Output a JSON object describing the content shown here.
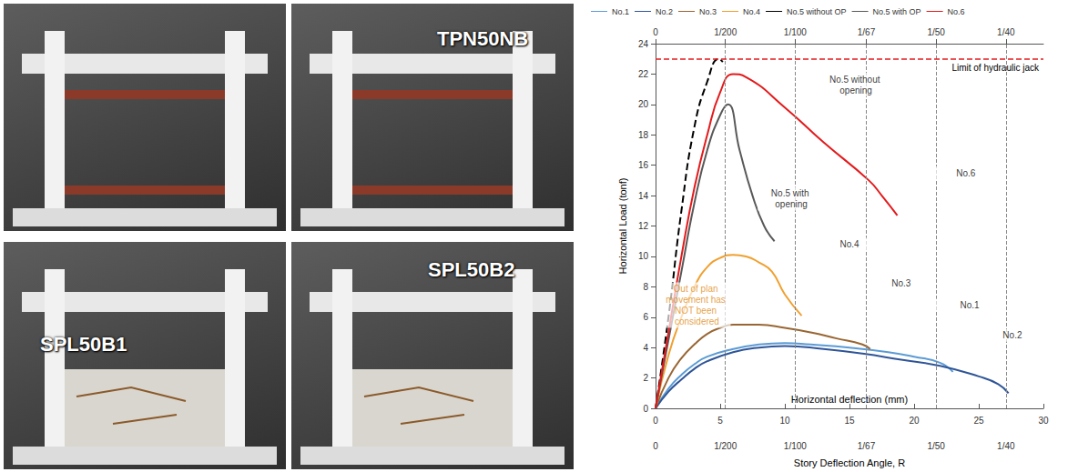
{
  "photo_labels": [
    "TPN50NB",
    "SPL50B1",
    "SPL50B2"
  ],
  "chart_data": {
    "type": "line",
    "xlabel": "Horizontal deflection (mm)",
    "ylabel": "Horizontal Load (tonf)",
    "x2label": "Story Deflection Angle, R",
    "xlim": [
      0,
      30
    ],
    "xticks": [
      0,
      5,
      10,
      15,
      20,
      25,
      30
    ],
    "x2lim": [
      0,
      30
    ],
    "x2ticks": [
      0,
      {
        "value": 5.4,
        "label": "1/200"
      },
      {
        "value": 10.8,
        "label": "1/100"
      },
      {
        "value": 16.3,
        "label": "1/67"
      },
      {
        "value": 21.7,
        "label": "1/50"
      },
      {
        "value": 27.1,
        "label": "1/40"
      }
    ],
    "ylim": [
      0,
      24
    ],
    "yticks": [
      0,
      2,
      4,
      6,
      8,
      10,
      12,
      14,
      16,
      18,
      20,
      22,
      24
    ],
    "grid": false,
    "legend": "top",
    "limit_line": {
      "y": 23,
      "label": "Limit of hydraulic jack",
      "color": "#e31a1c"
    },
    "series": [
      {
        "name": "No.1",
        "color": "#5b9bd5",
        "line_style": "solid",
        "x": [
          0,
          1,
          2,
          3,
          4,
          6,
          8,
          10,
          12,
          15,
          18,
          20,
          22,
          23
        ],
        "values": [
          0,
          1.3,
          2.2,
          2.9,
          3.4,
          3.9,
          4.2,
          4.3,
          4.2,
          4.0,
          3.7,
          3.4,
          3.0,
          2.4
        ]
      },
      {
        "name": "No.2",
        "color": "#2f5597",
        "line_style": "solid",
        "x": [
          0,
          1,
          2,
          3,
          4,
          6,
          8,
          10,
          13,
          16,
          19,
          22,
          25,
          26.5,
          27.3
        ],
        "values": [
          0,
          1.1,
          1.9,
          2.6,
          3.1,
          3.7,
          4.0,
          4.1,
          3.9,
          3.6,
          3.2,
          2.8,
          2.1,
          1.6,
          1.0
        ]
      },
      {
        "name": "No.3",
        "color": "#996633",
        "line_style": "solid",
        "x": [
          0,
          1,
          2,
          3,
          4,
          5,
          6,
          8,
          10,
          12,
          14,
          16,
          16.6
        ],
        "values": [
          0,
          2.0,
          3.3,
          4.2,
          4.9,
          5.3,
          5.5,
          5.5,
          5.3,
          5.0,
          4.6,
          4.2,
          3.9
        ]
      },
      {
        "name": "No.4",
        "color": "#f0a030",
        "line_style": "solid",
        "x": [
          0,
          1,
          2,
          3,
          4,
          5,
          6,
          7,
          8,
          9,
          10,
          11.3
        ],
        "values": [
          0,
          3.5,
          6.0,
          8.0,
          9.3,
          9.9,
          10.1,
          10.0,
          9.6,
          9.0,
          7.5,
          6.1
        ]
      },
      {
        "name": "No.5 without OP",
        "color": "#000000",
        "line_style": "dashed",
        "x": [
          0,
          1,
          2,
          3,
          4,
          4.9,
          5.2
        ],
        "values": [
          0,
          6.0,
          13.0,
          18.5,
          21.5,
          23.0,
          22.8
        ]
      },
      {
        "name": "No.5 with OP",
        "color": "#595959",
        "line_style": "solid",
        "x": [
          0,
          1,
          2,
          3,
          4,
          5,
          5.6,
          6.5,
          7.5,
          8.4,
          9.2
        ],
        "values": [
          0,
          4.5,
          9.0,
          13.5,
          17.0,
          19.3,
          20.0,
          17.0,
          14.0,
          12.0,
          11.0
        ]
      },
      {
        "name": "No.6",
        "color": "#e31a1c",
        "line_style": "solid",
        "x": [
          0,
          1,
          2,
          3,
          4,
          5,
          6,
          7,
          10,
          13,
          16.5,
          17.5,
          18.7
        ],
        "values": [
          0,
          5.0,
          10.0,
          14.5,
          18.0,
          20.8,
          22.0,
          21.8,
          19.8,
          17.5,
          15.0,
          14.0,
          12.7
        ]
      }
    ],
    "annotations": [
      {
        "text": "No.5 without opening",
        "x": 15.5,
        "y": 21.3,
        "color": "#000000"
      },
      {
        "text": "No.6",
        "x": 24,
        "y": 15.5,
        "color": "#000000"
      },
      {
        "text": "No.5 with opening",
        "x": 10.5,
        "y": 13.8,
        "color": "#000000"
      },
      {
        "text": "No.4",
        "x": 15,
        "y": 10.8,
        "color": "#000000"
      },
      {
        "text": "No.3",
        "x": 19,
        "y": 8.2,
        "color": "#000000"
      },
      {
        "text": "No.1",
        "x": 24.3,
        "y": 6.8,
        "color": "#000000"
      },
      {
        "text": "No.2",
        "x": 27.6,
        "y": 4.8,
        "color": "#000000"
      },
      {
        "text": "Out of plan movement has NOT been considered",
        "x": 3.2,
        "y": 6.8,
        "color": "#e08a10"
      }
    ]
  }
}
